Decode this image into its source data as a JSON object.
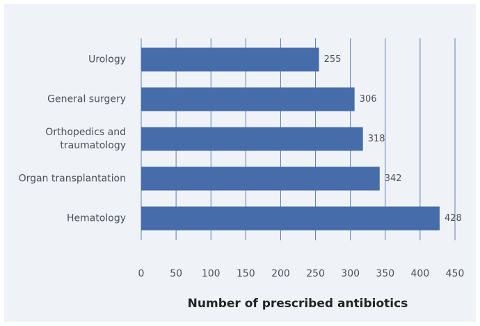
{
  "chart_data": {
    "type": "bar",
    "orientation": "horizontal",
    "x_label": "Number of prescribed antibiotics",
    "categories": [
      "Urology",
      "General surgery",
      "Orthopedics and traumatology",
      "Organ transplantation",
      "Hematology"
    ],
    "values": [
      255,
      306,
      318,
      342,
      428
    ],
    "color": "#466da9",
    "xlim": [
      0,
      450
    ],
    "xticks": [
      0,
      50,
      100,
      150,
      200,
      250,
      300,
      350,
      400,
      450
    ],
    "grid": true
  }
}
